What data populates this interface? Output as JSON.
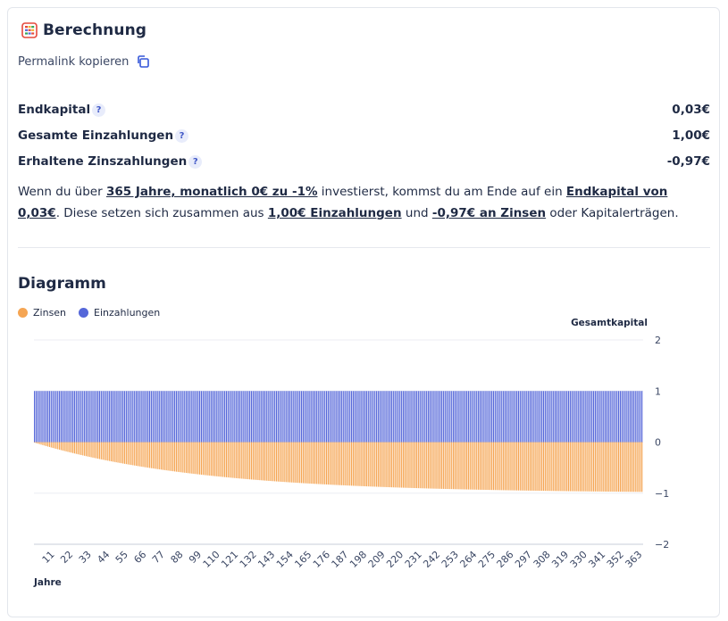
{
  "header": {
    "title": "Berechnung",
    "icon": "calculator-icon",
    "permalink_label": "Permalink kopieren",
    "permalink_icon": "copy-icon"
  },
  "results": [
    {
      "label": "Endkapital",
      "value": "0,03€"
    },
    {
      "label": "Gesamte Einzahlungen",
      "value": "1,00€"
    },
    {
      "label": "Erhaltene Zinszahlungen",
      "value": "-0,97€"
    }
  ],
  "summary": {
    "t1": "Wenn du über ",
    "b1": "365 Jahre, monatlich 0€ zu -1%",
    "t2": " investierst, kommst du am Ende auf ein ",
    "b2": "Endkapital von 0,03€",
    "t3": ". Diese setzen sich zusammen aus ",
    "b3": "1,00€ Einzahlungen",
    "t4": " und ",
    "b4": "-0,97€ an Zinsen",
    "t5": " oder Kapitalerträgen."
  },
  "diagram": {
    "title": "Diagramm",
    "legend": [
      {
        "label": "Zinsen",
        "color": "#f5a553"
      },
      {
        "label": "Einzahlungen",
        "color": "#5567d9"
      }
    ]
  },
  "chart_data": {
    "type": "bar",
    "stacked": true,
    "xlabel": "Jahre",
    "ylabel": "Gesamtkapital",
    "ylim": [
      -2,
      2
    ],
    "yticks": [
      2,
      1,
      0,
      -1,
      -2
    ],
    "x_start": 1,
    "x_end": 365,
    "x_tick_labels": [
      "11",
      "22",
      "33",
      "44",
      "55",
      "66",
      "77",
      "88",
      "99",
      "110",
      "121",
      "132",
      "143",
      "154",
      "165",
      "176",
      "187",
      "198",
      "209",
      "220",
      "231",
      "242",
      "253",
      "264",
      "275",
      "286",
      "297",
      "308",
      "319",
      "330",
      "341",
      "352",
      "363"
    ],
    "series": [
      {
        "name": "Einzahlungen",
        "color": "#5567d9",
        "formula": "constant 1 per year (1..365)",
        "value": 1
      },
      {
        "name": "Zinsen",
        "color": "#f5a553",
        "formula": "1.0005^... not used",
        "value_function": "-(1 - 0.99^year)"
      }
    ],
    "grid": true,
    "legend_position": "top-left"
  }
}
